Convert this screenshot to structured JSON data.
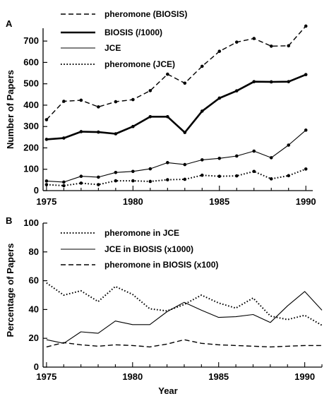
{
  "chart_data": [
    {
      "panel_label": "A",
      "type": "line",
      "x": [
        1975,
        1976,
        1977,
        1978,
        1979,
        1980,
        1981,
        1982,
        1983,
        1984,
        1985,
        1986,
        1987,
        1988,
        1989,
        1990
      ],
      "xticks": [
        1975,
        1980,
        1985,
        1990
      ],
      "xlim": [
        1974.8,
        1990.4
      ],
      "ylim": [
        0,
        760
      ],
      "yticks": [
        0,
        100,
        200,
        300,
        400,
        500,
        600,
        700
      ],
      "ylabel": "Number of Papers",
      "xlabel": "",
      "legend_position": "top-left",
      "series": [
        {
          "name": "pheromone (BIOSIS)",
          "style": "dashed",
          "values": [
            332,
            418,
            423,
            392,
            416,
            426,
            468,
            545,
            503,
            582,
            652,
            695,
            712,
            676,
            678,
            770
          ]
        },
        {
          "name": "BIOSIS (/1000)",
          "style": "thick",
          "values": [
            240,
            246,
            276,
            274,
            266,
            300,
            346,
            346,
            272,
            372,
            433,
            467,
            510,
            509,
            510,
            543
          ]
        },
        {
          "name": "JCE",
          "style": "thin",
          "values": [
            45,
            40,
            67,
            63,
            85,
            90,
            102,
            131,
            122,
            144,
            151,
            162,
            185,
            154,
            213,
            283
          ]
        },
        {
          "name": "pheromone (JCE)",
          "style": "dotted",
          "values": [
            28,
            23,
            35,
            28,
            46,
            46,
            43,
            51,
            53,
            72,
            67,
            69,
            90,
            55,
            70,
            101
          ]
        }
      ]
    },
    {
      "panel_label": "B",
      "type": "line",
      "x": [
        1975,
        1976,
        1977,
        1978,
        1979,
        1980,
        1981,
        1982,
        1983,
        1984,
        1985,
        1986,
        1987,
        1988,
        1989,
        1990,
        1991
      ],
      "xticks": [
        1975,
        1980,
        1985,
        1990
      ],
      "xlim": [
        1974.8,
        1991
      ],
      "ylim": [
        0,
        100
      ],
      "yticks": [
        0,
        20,
        40,
        60,
        80,
        100
      ],
      "ylabel": "Percentage of Papers",
      "xlabel": "Year",
      "legend_position": "top",
      "series": [
        {
          "name": "pheromone in JCE",
          "style": "dotted",
          "values": [
            58.5,
            50,
            53,
            45.5,
            56,
            50.5,
            40.5,
            39,
            43.5,
            50,
            44.5,
            41,
            48,
            35.5,
            33,
            36,
            29
          ]
        },
        {
          "name": "JCE in BIOSIS (x1000)",
          "style": "thin",
          "values": [
            19,
            16.5,
            24.5,
            23.5,
            32,
            29.5,
            29.5,
            38.5,
            45,
            39.5,
            34.5,
            35,
            36.5,
            31,
            42.5,
            52.5,
            39.5
          ]
        },
        {
          "name": "pheromone in BIOSIS (x100)",
          "style": "dashed",
          "values": [
            14,
            17,
            15.5,
            14.5,
            15.5,
            15,
            14,
            16,
            19,
            16.5,
            15.5,
            15,
            14.5,
            14,
            14.5,
            15,
            15
          ]
        }
      ]
    }
  ]
}
